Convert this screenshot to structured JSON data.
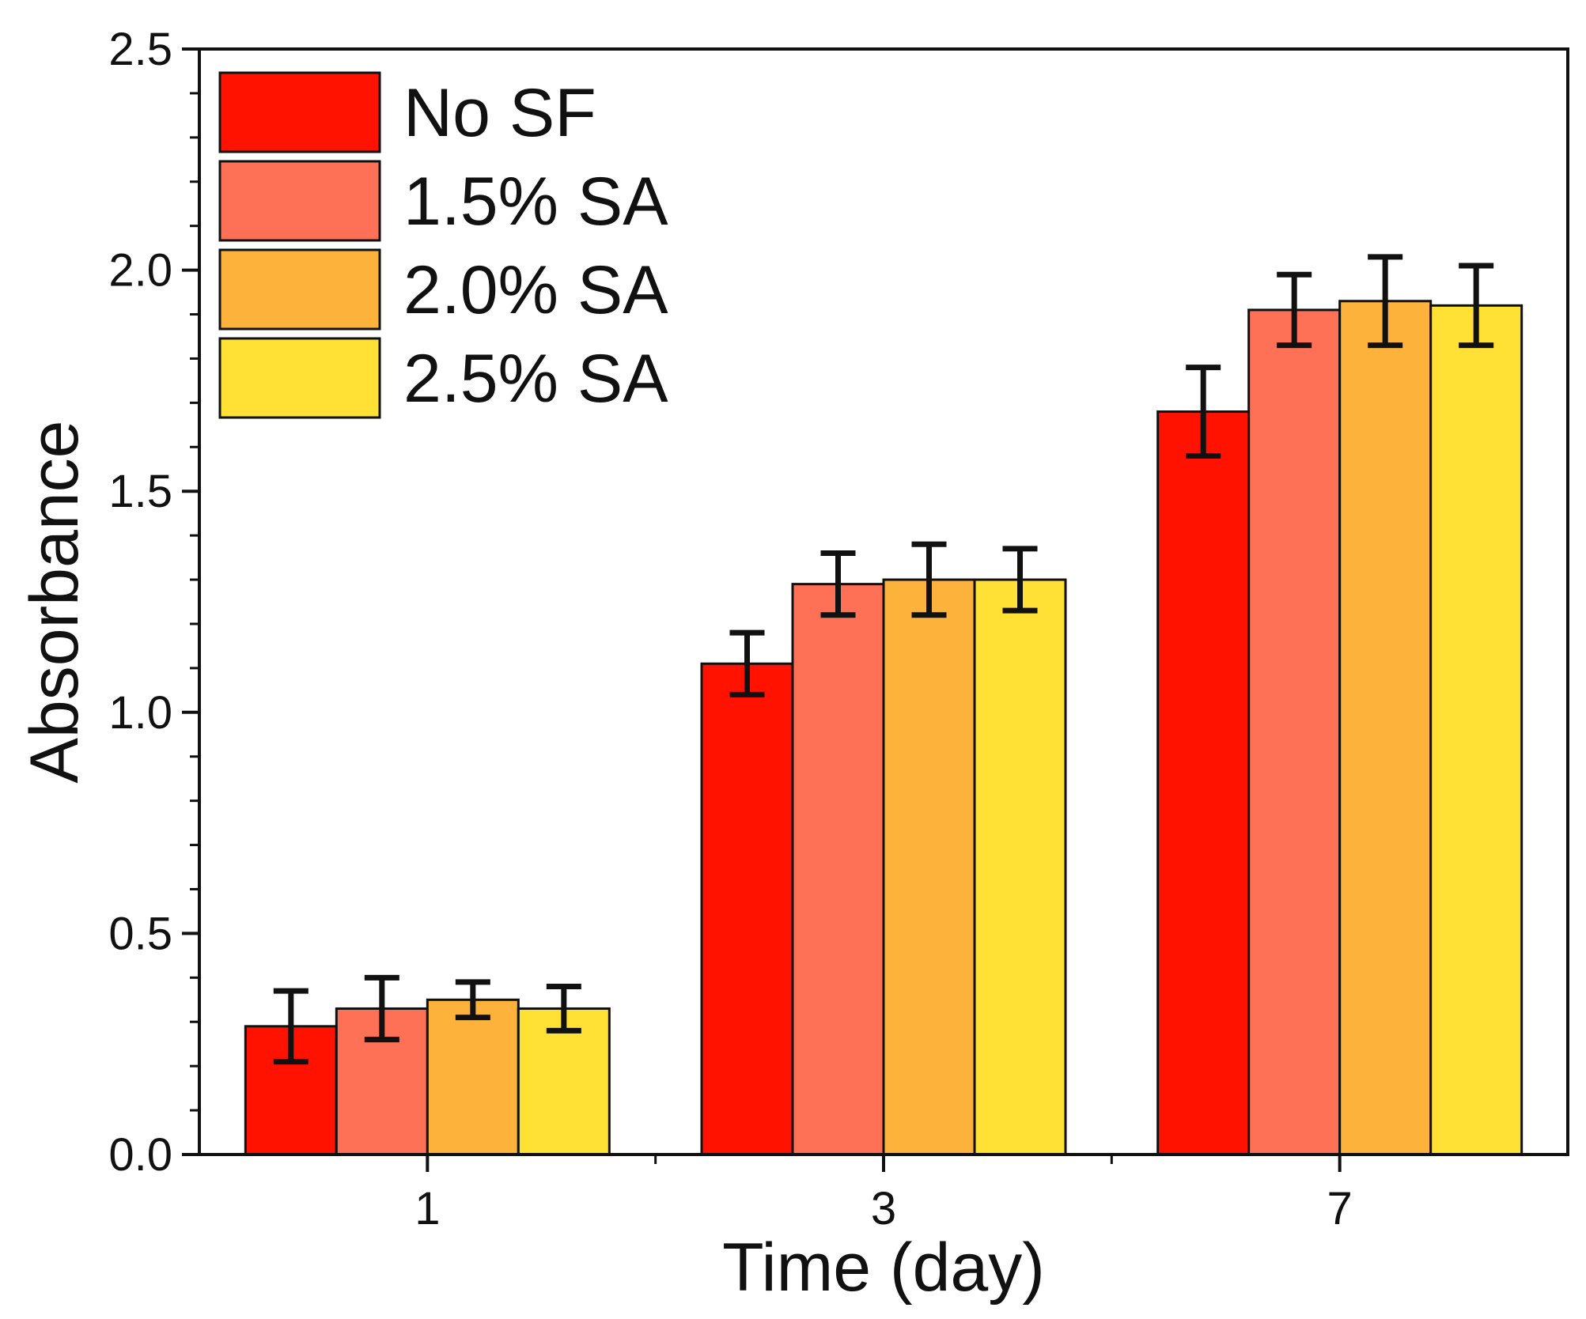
{
  "chart_data": {
    "type": "bar",
    "title": "",
    "xlabel": "Time (day)",
    "ylabel": "Absorbance",
    "categories": [
      "1",
      "3",
      "7"
    ],
    "ylim": [
      0,
      2.5
    ],
    "yticks": [
      "0.0",
      "0.5",
      "1.0",
      "1.5",
      "2.0",
      "2.5"
    ],
    "ytick_values": [
      0,
      0.5,
      1.0,
      1.5,
      2.0,
      2.5
    ],
    "minor_tick_step": 0.1,
    "grid": false,
    "legend_position": "top-left",
    "error_bars": true,
    "series": [
      {
        "name": "No SF",
        "color": "#ff1200",
        "values": [
          0.29,
          1.11,
          1.68
        ],
        "errors": [
          0.08,
          0.07,
          0.1
        ]
      },
      {
        "name": "1.5% SA",
        "color": "#ff7156",
        "values": [
          0.33,
          1.29,
          1.91
        ],
        "errors": [
          0.07,
          0.07,
          0.08
        ]
      },
      {
        "name": "2.0% SA",
        "color": "#fdb23c",
        "values": [
          0.35,
          1.3,
          1.93
        ],
        "errors": [
          0.04,
          0.08,
          0.1
        ]
      },
      {
        "name": "2.5% SA",
        "color": "#ffe034",
        "values": [
          0.33,
          1.3,
          1.92
        ],
        "errors": [
          0.05,
          0.07,
          0.09
        ]
      }
    ]
  }
}
